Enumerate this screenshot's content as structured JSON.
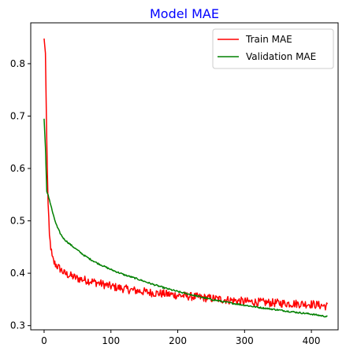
{
  "chart_data": {
    "type": "line",
    "title": "Model MAE",
    "title_color": "#0000ff",
    "xlabel": "",
    "ylabel": "",
    "xlim": [
      -20,
      440
    ],
    "ylim": [
      0.292,
      0.878
    ],
    "x_ticks": [
      0,
      100,
      200,
      300,
      400
    ],
    "y_ticks": [
      0.3,
      0.4,
      0.5,
      0.6,
      0.7,
      0.8
    ],
    "grid": false,
    "legend_position": "top-right",
    "series": [
      {
        "name": "Train MAE",
        "color": "#ff0000",
        "n_points": 425,
        "noise_amplitude": 0.008,
        "points": [
          [
            0,
            0.848
          ],
          [
            2,
            0.82
          ],
          [
            4,
            0.65
          ],
          [
            6,
            0.53
          ],
          [
            8,
            0.47
          ],
          [
            10,
            0.45
          ],
          [
            12,
            0.43
          ],
          [
            15,
            0.42
          ],
          [
            20,
            0.413
          ],
          [
            25,
            0.407
          ],
          [
            30,
            0.4
          ],
          [
            40,
            0.395
          ],
          [
            50,
            0.39
          ],
          [
            70,
            0.385
          ],
          [
            100,
            0.375
          ],
          [
            130,
            0.368
          ],
          [
            160,
            0.363
          ],
          [
            200,
            0.358
          ],
          [
            250,
            0.352
          ],
          [
            300,
            0.346
          ],
          [
            350,
            0.343
          ],
          [
            400,
            0.341
          ],
          [
            424,
            0.337
          ]
        ]
      },
      {
        "name": "Validation MAE",
        "color": "#008000",
        "n_points": 425,
        "noise_amplitude": 0.0015,
        "points": [
          [
            0,
            0.695
          ],
          [
            2,
            0.64
          ],
          [
            4,
            0.555
          ],
          [
            6,
            0.55
          ],
          [
            10,
            0.53
          ],
          [
            15,
            0.505
          ],
          [
            20,
            0.487
          ],
          [
            25,
            0.474
          ],
          [
            30,
            0.465
          ],
          [
            40,
            0.454
          ],
          [
            50,
            0.444
          ],
          [
            60,
            0.434
          ],
          [
            70,
            0.426
          ],
          [
            80,
            0.419
          ],
          [
            100,
            0.407
          ],
          [
            120,
            0.397
          ],
          [
            140,
            0.389
          ],
          [
            160,
            0.38
          ],
          [
            180,
            0.372
          ],
          [
            200,
            0.365
          ],
          [
            220,
            0.359
          ],
          [
            250,
            0.35
          ],
          [
            280,
            0.343
          ],
          [
            300,
            0.339
          ],
          [
            320,
            0.335
          ],
          [
            350,
            0.33
          ],
          [
            380,
            0.325
          ],
          [
            400,
            0.322
          ],
          [
            424,
            0.317
          ]
        ]
      }
    ]
  }
}
